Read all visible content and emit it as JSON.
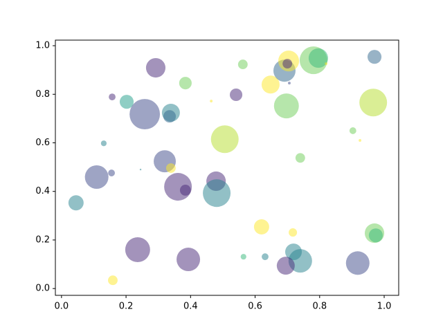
{
  "chart_data": {
    "type": "scatter",
    "alpha": 0.5,
    "xlim": [
      -0.019,
      1.045
    ],
    "ylim": [
      -0.028,
      1.023
    ],
    "xticks": [
      {
        "value": 0,
        "label": "0.0"
      },
      0.2,
      0.4,
      0.6,
      0.8,
      {
        "value": 1,
        "label": "1.0"
      }
    ],
    "yticks": [
      {
        "value": 0,
        "label": "0.0"
      },
      0.2,
      0.4,
      0.6,
      0.8,
      {
        "value": 1,
        "label": "1.0"
      }
    ],
    "grid": false,
    "x": [
      0.258,
      0.292,
      0.157,
      0.202,
      0.339,
      0.335,
      0.131,
      0.109,
      0.155,
      0.32,
      0.339,
      0.245,
      0.361,
      0.384,
      0.479,
      0.481,
      0.045,
      0.236,
      0.393,
      0.159,
      0.384,
      0.464,
      0.541,
      0.562,
      0.648,
      0.506,
      0.697,
      0.691,
      0.704,
      0.7,
      0.706,
      0.781,
      0.796,
      0.82,
      0.97,
      0.966,
      0.903,
      0.925,
      0.74,
      0.62,
      0.717,
      0.97,
      0.974,
      0.719,
      0.74,
      0.695,
      0.631,
      0.564,
      0.918
    ],
    "y": [
      0.718,
      0.909,
      0.789,
      0.769,
      0.724,
      0.709,
      0.598,
      0.459,
      0.476,
      0.524,
      0.496,
      0.49,
      0.419,
      0.405,
      0.442,
      0.393,
      0.353,
      0.16,
      0.12,
      0.034,
      0.846,
      0.772,
      0.798,
      0.923,
      0.84,
      0.615,
      0.752,
      0.897,
      0.937,
      0.926,
      0.846,
      0.94,
      0.949,
      0.926,
      0.954,
      0.766,
      0.65,
      0.61,
      0.538,
      0.254,
      0.231,
      0.228,
      0.219,
      0.151,
      0.114,
      0.094,
      0.131,
      0.131,
      0.105
    ],
    "sizes": [
      1000,
      410,
      50,
      210,
      350,
      170,
      35,
      600,
      50,
      530,
      100,
      3,
      830,
      130,
      410,
      830,
      250,
      670,
      600,
      100,
      170,
      8,
      170,
      100,
      350,
      830,
      670,
      530,
      470,
      100,
      8,
      830,
      410,
      8,
      210,
      830,
      50,
      8,
      100,
      250,
      75,
      410,
      210,
      300,
      600,
      350,
      50,
      35,
      600
    ],
    "colors": [
      "#3e4989",
      "#482878",
      "#482878",
      "#1f9e89",
      "#26828e",
      "#31688e",
      "#26828e",
      "#3e4989",
      "#3e4989",
      "#3e4989",
      "#fde725",
      "#26828e",
      "#482878",
      "#482878",
      "#482878",
      "#26828e",
      "#26828e",
      "#482878",
      "#482878",
      "#fde725",
      "#6ece58",
      "#fde725",
      "#482878",
      "#6ece58",
      "#fde725",
      "#b5de2b",
      "#6ece58",
      "#31688e",
      "#fde725",
      "#482878",
      "#3e4989",
      "#6ece58",
      "#35b779",
      "#fde725",
      "#31688e",
      "#b5de2b",
      "#6ece58",
      "#fde725",
      "#6ece58",
      "#fde725",
      "#fde725",
      "#6ece58",
      "#35b779",
      "#26828e",
      "#26828e",
      "#482878",
      "#26828e",
      "#35b779",
      "#3e4989"
    ]
  }
}
